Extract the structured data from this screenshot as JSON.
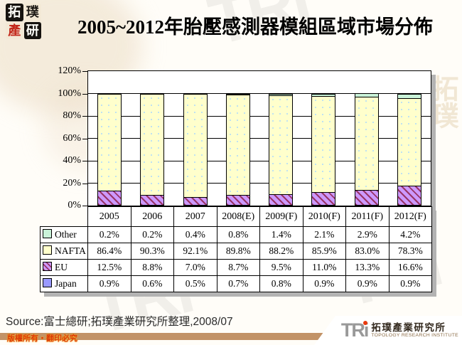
{
  "header": {
    "title": "2005~2012年胎壓感測器模組區域市場分佈",
    "seal": {
      "chars": [
        "拓",
        "璞",
        "產",
        "研"
      ]
    }
  },
  "chart_data": {
    "type": "bar",
    "stacked": true,
    "percent_stacked": true,
    "title": "2005~2012年胎壓感測器模組區域市場分佈",
    "categories": [
      "2005",
      "2006",
      "2007",
      "2008(E)",
      "2009(F)",
      "2010(F)",
      "2011(F)",
      "2012(F)"
    ],
    "series": [
      {
        "name": "Japan",
        "color": "#9999FF",
        "pattern": "solid",
        "values": [
          0.9,
          0.6,
          0.5,
          0.7,
          0.8,
          0.9,
          0.9,
          0.9
        ]
      },
      {
        "name": "EU",
        "color": "#CC99FF",
        "pattern": "diagonal-stripe-#993366",
        "values": [
          12.5,
          8.8,
          7.0,
          8.7,
          9.5,
          11.0,
          13.3,
          16.6
        ]
      },
      {
        "name": "NAFTA",
        "color": "#FFFFCC",
        "pattern": "dots",
        "values": [
          86.4,
          90.3,
          92.1,
          89.8,
          88.2,
          85.9,
          83.0,
          78.3
        ]
      },
      {
        "name": "Other",
        "color": "#C9F2D8",
        "pattern": "solid",
        "values": [
          0.2,
          0.2,
          0.4,
          0.8,
          1.4,
          2.1,
          2.9,
          4.2
        ]
      }
    ],
    "ylim": [
      0,
      120
    ],
    "yticks": [
      "0%",
      "20%",
      "40%",
      "60%",
      "80%",
      "100%",
      "120%"
    ],
    "grid": true,
    "legend_position": "data-table-left"
  },
  "table": {
    "rows": [
      {
        "label": "Other",
        "key": "other",
        "values": [
          "0.2%",
          "0.2%",
          "0.4%",
          "0.8%",
          "1.4%",
          "2.1%",
          "2.9%",
          "4.2%"
        ]
      },
      {
        "label": "NAFTA",
        "key": "nafta",
        "values": [
          "86.4%",
          "90.3%",
          "92.1%",
          "89.8%",
          "88.2%",
          "85.9%",
          "83.0%",
          "78.3%"
        ]
      },
      {
        "label": "EU",
        "key": "eu",
        "values": [
          "12.5%",
          "8.8%",
          "7.0%",
          "8.7%",
          "9.5%",
          "11.0%",
          "13.3%",
          "16.6%"
        ]
      },
      {
        "label": "Japan",
        "key": "japan",
        "values": [
          "0.9%",
          "0.6%",
          "0.5%",
          "0.7%",
          "0.8%",
          "0.9%",
          "0.9%",
          "0.9%"
        ]
      }
    ]
  },
  "footer": {
    "source": "Source:富士總研;拓璞產業研究所整理,2008/07",
    "copyright": "版權所有‧翻印必究",
    "bar_color": "#C29367",
    "logo": {
      "acronym": "TRi",
      "name_zh": "拓璞產業研究所",
      "name_en": "TOPOLOGY RESEARCH INSTITUTE",
      "dot_color": "#E8380D"
    }
  },
  "watermark_text": "TRi",
  "watermark_zh": "拓璞"
}
